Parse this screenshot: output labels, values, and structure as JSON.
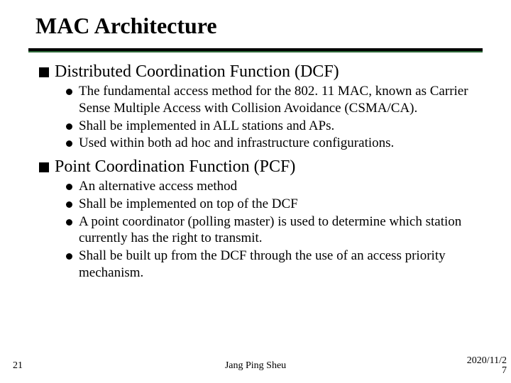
{
  "title": "MAC Architecture",
  "sections": [
    {
      "heading": "Distributed Coordination Function (DCF)",
      "items": [
        "The fundamental access method for the 802. 11 MAC, known as Carrier Sense Multiple Access with Collision Avoidance (CSMA/CA).",
        "Shall be implemented in ALL stations and APs.",
        "Used within both ad hoc and infrastructure configurations."
      ]
    },
    {
      "heading": "Point Coordination Function (PCF)",
      "items": [
        "An alternative access method",
        "Shall be implemented on top of the DCF",
        "A point coordinator (polling master) is used to determine which station currently has the right to transmit.",
        "Shall be built up from the DCF through the use of an access priority mechanism."
      ]
    }
  ],
  "footer": {
    "page": "21",
    "author": "Jang Ping Sheu",
    "date_line1": "2020/11/2",
    "date_line2": "7"
  },
  "style": {
    "title_fontsize": 32,
    "l1_fontsize": 24,
    "l2_fontsize": 19,
    "footer_fontsize": 14,
    "rule_color_top": "#000000",
    "rule_color_bottom": "#2f6b3a",
    "marker_square_size": 14,
    "marker_circle_size": 9,
    "text_color": "#000000",
    "background_color": "#ffffff"
  }
}
